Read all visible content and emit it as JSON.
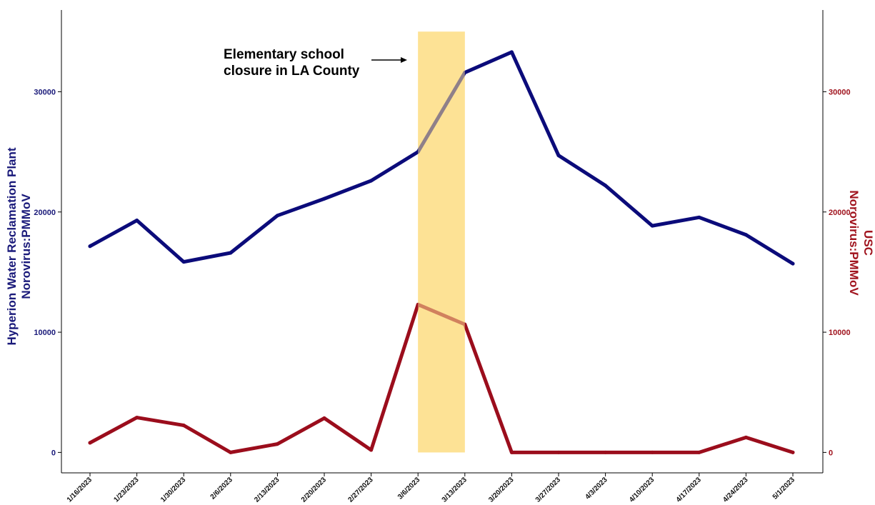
{
  "chart_data": {
    "type": "line",
    "x": [
      "1/16/2023",
      "1/23/2023",
      "1/30/2023",
      "2/6/2023",
      "2/13/2023",
      "2/20/2023",
      "2/27/2023",
      "3/6/2023",
      "3/13/2023",
      "3/20/2023",
      "3/27/2023",
      "4/3/2023",
      "4/10/2023",
      "4/17/2023",
      "4/24/2023",
      "5/1/2023"
    ],
    "series": [
      {
        "axis": "left",
        "color": "#0b0b7a",
        "values": [
          17150,
          19300,
          15850,
          16600,
          19700,
          21100,
          22600,
          25000,
          31600,
          33300,
          24700,
          22200,
          18850,
          19550,
          18100,
          15700
        ]
      },
      {
        "axis": "right",
        "color": "#9b0d1c",
        "values": [
          800,
          2900,
          2250,
          0,
          700,
          2850,
          200,
          12300,
          10650,
          0,
          0,
          0,
          0,
          0,
          1250,
          0
        ]
      }
    ],
    "ylabel_left": [
      "Hyperion Water Reclamation Plant",
      "Norovirus:PMMoV"
    ],
    "ylabel_right": [
      "USC",
      "Norovirus:PMMoV"
    ],
    "yticks_left": [
      "0",
      "10000",
      "20000",
      "30000"
    ],
    "yticks_right": [
      "0",
      "10000",
      "20000",
      "30000"
    ],
    "ylim_left": [
      -1700,
      36800
    ],
    "ylim_right": [
      -1700,
      36800
    ],
    "highlight": {
      "x_start": "3/6/2023",
      "x_end": "3/13/2023",
      "y_top": 35000,
      "color": "#fde295"
    },
    "annotation": [
      "Elementary school",
      "closure in LA County"
    ],
    "grid": false
  }
}
